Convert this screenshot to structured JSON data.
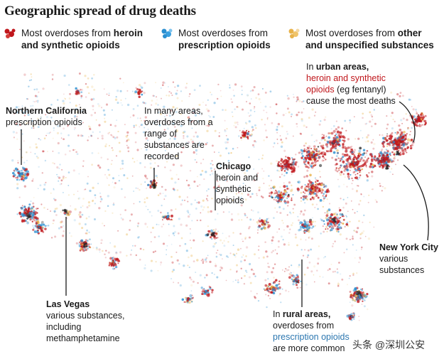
{
  "title": "Geographic spread of drug deaths",
  "legend": {
    "heroin": {
      "pre": "Most overdoses from ",
      "bold1": "heroin",
      "line2b": "and synthetic opioids",
      "color": "#c0171c"
    },
    "rx": {
      "line1": "Most overdoses from",
      "line2": "prescription opioids",
      "color": "#2b8fd0"
    },
    "other": {
      "pre": "Most overdoses from ",
      "bold1": "other",
      "line2b": "and unspecified substances",
      "color": "#e8b24a"
    }
  },
  "annotations": {
    "norcal": {
      "title": "Northern California",
      "body": "prescription opioids"
    },
    "many": {
      "lines": [
        "In many areas,",
        "overdoses from a",
        "range of",
        "substances are",
        "recorded"
      ]
    },
    "urban": {
      "l1_pre": "In ",
      "l1_bold": "urban areas,",
      "l2_red": "heroin and synthetic",
      "l3_red": "opioids",
      "l3_rest": " (eg fentanyl)",
      "l4": "cause the most deaths"
    },
    "chicago": {
      "title": "Chicago",
      "lines": [
        "heroin and",
        "synthetic",
        "opioids"
      ]
    },
    "nyc": {
      "title": "New York City",
      "lines": [
        "various",
        "substances"
      ]
    },
    "lv": {
      "title": "Las Vegas",
      "lines": [
        "various substances,",
        "including",
        "methamphetamine"
      ]
    },
    "rural": {
      "l1_pre": "In ",
      "l1_bold": "rural areas,",
      "l2": "overdoses from",
      "l3_blue": "prescription opioids",
      "l4": "are more common"
    }
  },
  "watermark": "头条 @深圳公安",
  "colors": {
    "heroin": "#c0171c",
    "prescription": "#2b8fd0",
    "other": "#e8b24a",
    "dark": "#2a2a2a",
    "text": "#1a1a1a"
  }
}
